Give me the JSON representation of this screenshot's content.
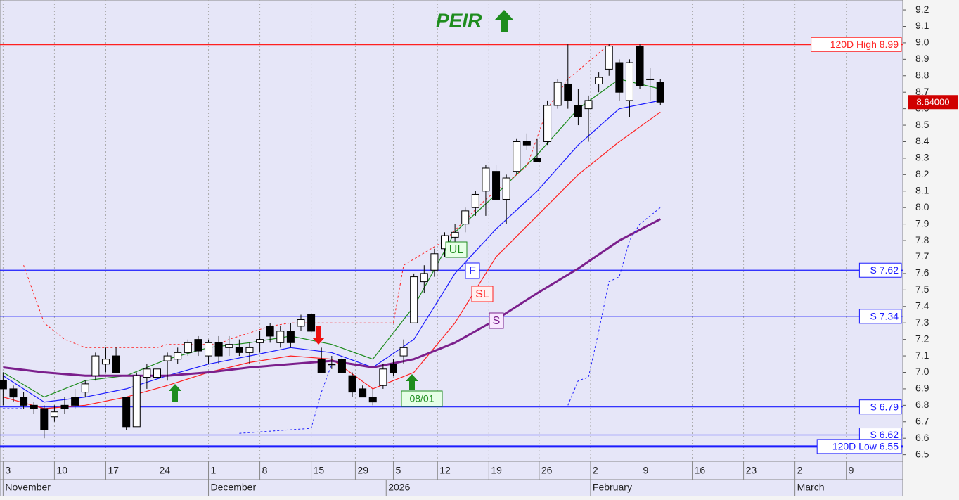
{
  "chart_data": {
    "type": "candlestick",
    "title": "PEIR",
    "xlim": [
      -0.3,
      87.6
    ],
    "ylim": [
      6.46,
      9.26
    ],
    "yticks": [
      6.5,
      6.6,
      6.7,
      6.8,
      6.9,
      {
        "value": 7,
        "label": "7.0"
      },
      7.1,
      7.2,
      7.3,
      7.4,
      7.5,
      7.6,
      7.7,
      7.8,
      7.9,
      {
        "value": 8,
        "label": "8.0"
      },
      8.1,
      8.2,
      8.3,
      8.4,
      8.5,
      8.6,
      8.7,
      8.8,
      8.9,
      {
        "value": 9,
        "label": "9.0"
      },
      9.1,
      9.2
    ],
    "xticks": [
      {
        "value": 0,
        "label": "3"
      },
      {
        "value": 5,
        "label": "10"
      },
      {
        "value": 10,
        "label": "17"
      },
      {
        "value": 15,
        "label": "24"
      },
      {
        "value": 20,
        "label": "1"
      },
      {
        "value": 25,
        "label": "8"
      },
      {
        "value": 30,
        "label": "15"
      },
      {
        "value": 34.3,
        "label": "29"
      },
      {
        "value": 38,
        "label": "5"
      },
      {
        "value": 42.3,
        "label": "12"
      },
      {
        "value": 47.3,
        "label": "19"
      },
      {
        "value": 52.2,
        "label": "26"
      },
      {
        "value": 57.2,
        "label": "2"
      },
      {
        "value": 62.1,
        "label": "9"
      },
      {
        "value": 67.1,
        "label": "16"
      },
      {
        "value": 72.1,
        "label": "23"
      },
      {
        "value": 77.1,
        "label": "2"
      },
      {
        "value": 82.1,
        "label": "9"
      }
    ],
    "month_ticks": [
      {
        "value": 0,
        "label": "November"
      },
      {
        "value": 20,
        "label": "December"
      },
      {
        "value": 37.3,
        "label": "2026"
      },
      {
        "value": 57.2,
        "label": "February"
      },
      {
        "value": 77.1,
        "label": "March"
      }
    ],
    "x": [
      0,
      1,
      2,
      3,
      4,
      5,
      6,
      7,
      8,
      9,
      10,
      11,
      12,
      13,
      14,
      15,
      16,
      17,
      18,
      19,
      20,
      21,
      22,
      23,
      24,
      25,
      26,
      27,
      28,
      29,
      30,
      31,
      32,
      33,
      34,
      35,
      36,
      37,
      38,
      39,
      40,
      41,
      42,
      43,
      44,
      45,
      46,
      47,
      48,
      49,
      50,
      51,
      52,
      53,
      54,
      55,
      56,
      57,
      58,
      59,
      60,
      61,
      62,
      63,
      64
    ],
    "ohlc": [
      [
        6.95,
        7.0,
        6.8,
        6.9
      ],
      [
        6.9,
        6.92,
        6.82,
        6.85
      ],
      [
        6.85,
        6.88,
        6.78,
        6.8
      ],
      [
        6.8,
        6.82,
        6.75,
        6.78
      ],
      [
        6.78,
        6.8,
        6.6,
        6.65
      ],
      [
        6.73,
        6.8,
        6.7,
        6.76
      ],
      [
        6.8,
        6.85,
        6.75,
        6.78
      ],
      [
        6.85,
        6.9,
        6.78,
        6.8
      ],
      [
        6.88,
        6.95,
        6.85,
        6.93
      ],
      [
        6.98,
        7.12,
        6.95,
        7.1
      ],
      [
        7.05,
        7.15,
        7.0,
        7.08
      ],
      [
        7.1,
        7.15,
        7.0,
        7.0
      ],
      [
        6.85,
        6.85,
        6.65,
        6.67
      ],
      [
        6.67,
        7.0,
        6.67,
        6.98
      ],
      [
        6.97,
        7.05,
        6.9,
        7.02
      ],
      [
        6.97,
        7.05,
        6.88,
        7.02
      ],
      [
        7.07,
        7.12,
        6.95,
        7.1
      ],
      [
        7.08,
        7.15,
        7.05,
        7.12
      ],
      [
        7.12,
        7.2,
        7.1,
        7.18
      ],
      [
        7.2,
        7.22,
        7.1,
        7.13
      ],
      [
        7.1,
        7.2,
        7.05,
        7.18
      ],
      [
        7.18,
        7.22,
        7.05,
        7.1
      ],
      [
        7.15,
        7.22,
        7.1,
        7.17
      ],
      [
        7.15,
        7.2,
        7.1,
        7.12
      ],
      [
        7.12,
        7.18,
        7.05,
        7.15
      ],
      [
        7.18,
        7.25,
        7.12,
        7.2
      ],
      [
        7.28,
        7.3,
        7.18,
        7.22
      ],
      [
        7.18,
        7.28,
        7.15,
        7.25
      ],
      [
        7.25,
        7.3,
        7.15,
        7.18
      ],
      [
        7.28,
        7.35,
        7.25,
        7.32
      ],
      [
        7.35,
        7.36,
        7.24,
        7.25
      ],
      [
        7.08,
        7.15,
        7.0,
        7.0
      ],
      [
        7.05,
        7.1,
        7.02,
        7.05
      ],
      [
        7.08,
        7.1,
        7.0,
        7.0
      ],
      [
        6.98,
        7.0,
        6.85,
        6.88
      ],
      [
        6.9,
        6.92,
        6.85,
        6.85
      ],
      [
        6.85,
        6.9,
        6.8,
        6.82
      ],
      [
        6.92,
        7.05,
        6.9,
        7.02
      ],
      [
        7.05,
        7.08,
        6.98,
        7.0
      ],
      [
        7.1,
        7.2,
        7.05,
        7.15
      ],
      [
        7.3,
        7.6,
        7.3,
        7.58
      ],
      [
        7.55,
        7.65,
        7.48,
        7.6
      ],
      [
        7.62,
        7.75,
        7.58,
        7.72
      ],
      [
        7.75,
        7.85,
        7.7,
        7.83
      ],
      [
        7.82,
        7.9,
        7.75,
        7.85
      ],
      [
        7.9,
        8.0,
        7.85,
        7.98
      ],
      [
        8.0,
        8.1,
        7.95,
        8.08
      ],
      [
        8.1,
        8.26,
        7.95,
        8.24
      ],
      [
        8.22,
        8.26,
        8.05,
        8.05
      ],
      [
        8.05,
        8.2,
        7.9,
        8.18
      ],
      [
        8.22,
        8.42,
        8.2,
        8.4
      ],
      [
        8.4,
        8.45,
        8.35,
        8.38
      ],
      [
        8.3,
        8.42,
        8.28,
        8.28
      ],
      [
        8.4,
        8.65,
        8.38,
        8.62
      ],
      [
        8.62,
        8.78,
        8.6,
        8.76
      ],
      [
        8.75,
        8.99,
        8.6,
        8.65
      ],
      [
        8.62,
        8.72,
        8.5,
        8.55
      ],
      [
        8.6,
        8.68,
        8.4,
        8.65
      ],
      [
        8.75,
        8.82,
        8.7,
        8.79
      ],
      [
        8.84,
        8.99,
        8.8,
        8.98
      ],
      [
        8.88,
        8.9,
        8.65,
        8.7
      ],
      [
        8.65,
        8.9,
        8.55,
        8.88
      ],
      [
        8.98,
        8.99,
        8.72,
        8.74
      ],
      [
        8.78,
        8.85,
        8.65,
        8.78
      ],
      [
        8.76,
        8.78,
        8.62,
        8.64
      ]
    ],
    "lines": [
      {
        "name": "UL",
        "color": "#1e8c1e",
        "width": 1.2,
        "x": [
          0,
          4,
          8,
          12,
          16,
          20,
          24,
          28,
          32,
          36,
          40,
          44,
          48,
          52,
          56,
          60,
          64
        ],
        "values": [
          7.0,
          6.85,
          6.95,
          6.98,
          7.08,
          7.15,
          7.18,
          7.22,
          7.17,
          7.08,
          7.4,
          7.85,
          8.08,
          8.32,
          8.6,
          8.78,
          8.72
        ]
      },
      {
        "name": "F",
        "color": "#1a1aff",
        "width": 1.2,
        "x": [
          0,
          4,
          8,
          12,
          16,
          20,
          24,
          28,
          32,
          36,
          40,
          44,
          48,
          52,
          56,
          60,
          64
        ],
        "values": [
          6.98,
          6.82,
          6.85,
          6.9,
          6.98,
          7.05,
          7.1,
          7.15,
          7.12,
          7.03,
          7.2,
          7.6,
          7.87,
          8.1,
          8.38,
          8.6,
          8.65
        ]
      },
      {
        "name": "SL",
        "color": "#ff2020",
        "width": 1.2,
        "x": [
          0,
          4,
          8,
          12,
          16,
          20,
          24,
          28,
          32,
          36,
          40,
          44,
          48,
          52,
          56,
          60,
          64
        ],
        "values": [
          6.85,
          6.78,
          6.8,
          6.85,
          6.92,
          7.0,
          7.06,
          7.1,
          7.08,
          6.9,
          7.0,
          7.3,
          7.7,
          7.95,
          8.2,
          8.4,
          8.58
        ]
      },
      {
        "name": "S",
        "color": "#7b1f8c",
        "width": 3,
        "x": [
          0,
          4,
          8,
          12,
          16,
          20,
          24,
          28,
          32,
          36,
          40,
          44,
          48,
          52,
          56,
          60,
          64
        ],
        "values": [
          7.03,
          7.0,
          6.98,
          6.98,
          6.98,
          7.0,
          7.03,
          7.05,
          7.07,
          7.03,
          7.08,
          7.18,
          7.32,
          7.48,
          7.63,
          7.8,
          7.93
        ]
      },
      {
        "color": "#ff2020",
        "width": 1,
        "dash": true,
        "x": [
          2,
          4,
          6,
          8,
          10,
          15,
          16,
          21,
          22,
          26,
          28,
          38,
          39,
          43,
          47,
          51,
          53,
          55,
          59,
          64
        ],
        "values": [
          7.65,
          7.3,
          7.2,
          7.15,
          7.15,
          7.15,
          7.17,
          7.17,
          7.2,
          7.28,
          7.3,
          7.3,
          7.65,
          7.8,
          8.05,
          8.25,
          8.6,
          8.78,
          8.99,
          8.99
        ]
      },
      {
        "color": "#1a1aff",
        "width": 1,
        "dash": true,
        "x": [
          0,
          2,
          3,
          23,
          30,
          31,
          32,
          33,
          55,
          56,
          57,
          58,
          59,
          60,
          61,
          62,
          63,
          64
        ],
        "values": [
          6.78,
          6.78,
          null,
          6.63,
          6.66,
          6.88,
          7.05,
          null,
          6.8,
          6.95,
          6.97,
          7.25,
          7.55,
          7.58,
          7.8,
          7.9,
          7.95,
          8.0
        ]
      }
    ],
    "levels": [
      {
        "label": "120D High 8.99",
        "value": 8.99,
        "color": "#ff2020",
        "width": 2
      },
      {
        "label": "S 7.62",
        "value": 7.62,
        "color": "#1a1aff",
        "width": 1.2
      },
      {
        "label": "S 7.34",
        "value": 7.34,
        "color": "#1a1aff",
        "width": 1.2
      },
      {
        "label": "S 6.79",
        "value": 6.79,
        "color": "#1a1aff",
        "width": 1.2
      },
      {
        "label": "S 6.62",
        "value": 6.62,
        "color": "#1a1aff",
        "width": 1.2
      },
      {
        "label": "120D Low 6.55",
        "value": 6.55,
        "color": "#1a1aff",
        "width": 3
      }
    ],
    "last_price": {
      "value": 8.64,
      "label": "8.64000"
    },
    "signal_label": "08/01"
  }
}
